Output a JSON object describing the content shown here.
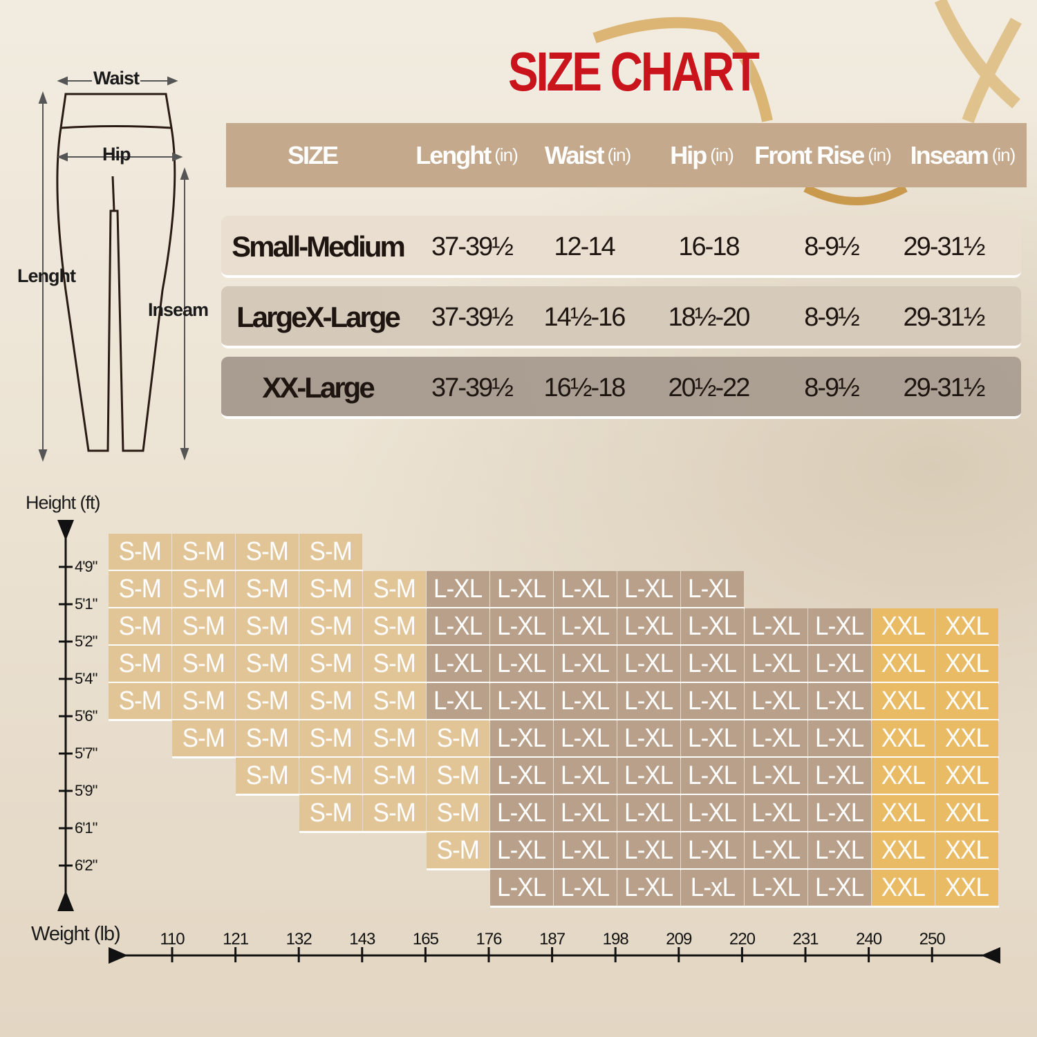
{
  "title": "SIZE CHART",
  "diagram": {
    "waist": "Waist",
    "hip": "Hip",
    "length": "Lenght",
    "inseam": "Inseam"
  },
  "table": {
    "headers": [
      {
        "label": "SIZE",
        "unit": ""
      },
      {
        "label": "Lenght",
        "unit": "(in)"
      },
      {
        "label": "Waist",
        "unit": "(in)"
      },
      {
        "label": "Hip",
        "unit": "(in)"
      },
      {
        "label": "Front Rise",
        "unit": "(in)"
      },
      {
        "label": "Inseam",
        "unit": "(in)"
      }
    ],
    "rows": [
      {
        "cells": [
          "Small-Medium",
          "37-39½",
          "12-14",
          "16-18",
          "8-9½",
          "29-31½"
        ],
        "color": "#e9ded0"
      },
      {
        "cells": [
          "LargeX-Large",
          "37-39½",
          "14½-16",
          "18½-20",
          "8-9½",
          "29-31½"
        ],
        "color": "#d5c9ba"
      },
      {
        "cells": [
          "XX-Large",
          "37-39½",
          "16½-18",
          "20½-22",
          "8-9½",
          "29-31½"
        ],
        "color": "#a99d91"
      }
    ]
  },
  "grid": {
    "height_axis_label": "Height (ft)",
    "weight_axis_label": "Weight (lb)",
    "height_ticks": [
      "4'9\"",
      "5'1\"",
      "5'2\"",
      "5'4\"",
      "5'6\"",
      "5'7\"",
      "5'9\"",
      "6'1\"",
      "6'2\""
    ],
    "weight_ticks": [
      "110",
      "121",
      "132",
      "143",
      "165",
      "176",
      "187",
      "198",
      "209",
      "220",
      "231",
      "240",
      "250"
    ],
    "colors": {
      "S-M": "#e2c597",
      "L-XL": "#b9a08a",
      "XXL": "#e8bb64"
    },
    "rows": [
      [
        "S-M",
        "S-M",
        "S-M",
        "S-M",
        "",
        "",
        "",
        "",
        "",
        "",
        "",
        "",
        "",
        ""
      ],
      [
        "S-M",
        "S-M",
        "S-M",
        "S-M",
        "S-M",
        "L-XL",
        "L-XL",
        "L-XL",
        "L-XL",
        "L-XL",
        "",
        "",
        "",
        ""
      ],
      [
        "S-M",
        "S-M",
        "S-M",
        "S-M",
        "S-M",
        "L-XL",
        "L-XL",
        "L-XL",
        "L-XL",
        "L-XL",
        "L-XL",
        "L-XL",
        "XXL",
        "XXL"
      ],
      [
        "S-M",
        "S-M",
        "S-M",
        "S-M",
        "S-M",
        "L-XL",
        "L-XL",
        "L-XL",
        "L-XL",
        "L-XL",
        "L-XL",
        "L-XL",
        "XXL",
        "XXL"
      ],
      [
        "S-M",
        "S-M",
        "S-M",
        "S-M",
        "S-M",
        "L-XL",
        "L-XL",
        "L-XL",
        "L-XL",
        "L-XL",
        "L-XL",
        "L-XL",
        "XXL",
        "XXL"
      ],
      [
        "",
        "S-M",
        "S-M",
        "S-M",
        "S-M",
        "S-M",
        "L-XL",
        "L-XL",
        "L-XL",
        "L-XL",
        "L-XL",
        "L-XL",
        "XXL",
        "XXL"
      ],
      [
        "",
        "",
        "S-M",
        "S-M",
        "S-M",
        "S-M",
        "L-XL",
        "L-XL",
        "L-XL",
        "L-XL",
        "L-XL",
        "L-XL",
        "XXL",
        "XXL"
      ],
      [
        "",
        "",
        "",
        "S-M",
        "S-M",
        "S-M",
        "L-XL",
        "L-XL",
        "L-XL",
        "L-XL",
        "L-XL",
        "L-XL",
        "XXL",
        "XXL"
      ],
      [
        "",
        "",
        "",
        "",
        "",
        "S-M",
        "L-XL",
        "L-XL",
        "L-XL",
        "L-XL",
        "L-XL",
        "L-XL",
        "XXL",
        "XXL"
      ],
      [
        "",
        "",
        "",
        "",
        "",
        "",
        "L-XL",
        "L-XL",
        "L-XL",
        "L-xL",
        "L-XL",
        "L-XL",
        "XXL",
        "XXL"
      ]
    ]
  }
}
